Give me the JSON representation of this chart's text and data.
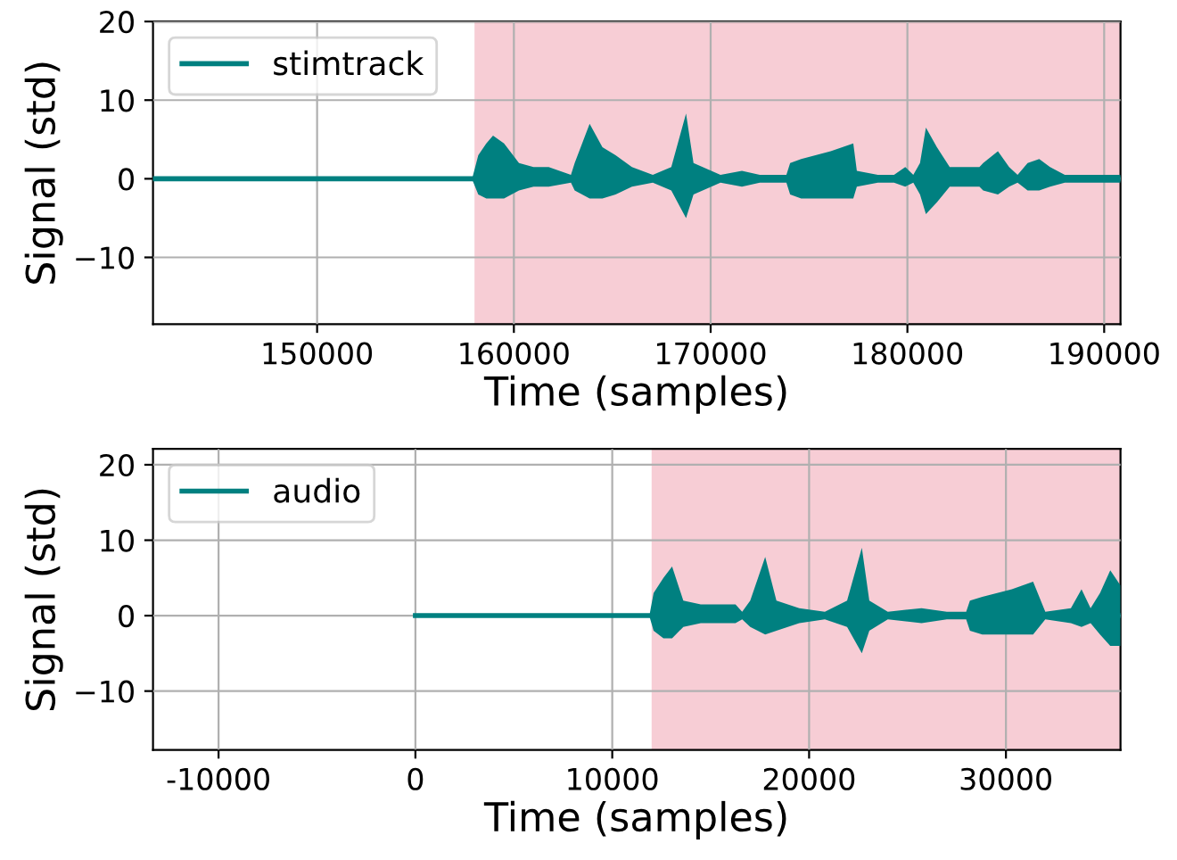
{
  "chart_data": [
    {
      "type": "line",
      "xlabel": "Time (samples)",
      "ylabel": "Signal (std)",
      "xlim": [
        141660,
        190830
      ],
      "ylim": [
        -18.5,
        20
      ],
      "xticks": [
        150000,
        160000,
        170000,
        180000,
        190000
      ],
      "yticks": [
        -10,
        0,
        10,
        20
      ],
      "grid": true,
      "legend": "top left",
      "bands": [
        {
          "axis": "x",
          "from": 158000,
          "to": 190830,
          "color": "#f7cdd5"
        }
      ],
      "series": [
        {
          "name": "stimtrack",
          "color": "#008080",
          "x": [
            141660,
            157900,
            158190,
            158600,
            158940,
            159500,
            160260,
            161000,
            161770,
            162900,
            163090,
            163850,
            164500,
            165170,
            166000,
            167060,
            168000,
            168750,
            169130,
            170500,
            171590,
            172500,
            173850,
            174040,
            174600,
            176100,
            177250,
            177430,
            178500,
            179320,
            179890,
            180300,
            180640,
            180940,
            181500,
            182150,
            183000,
            183660,
            183850,
            184600,
            185170,
            185600,
            186110,
            186700,
            187250,
            188000,
            190830
          ],
          "values": [
            0,
            0,
            0,
            0,
            0,
            0,
            0,
            0,
            0,
            0,
            0,
            0,
            0,
            0,
            0,
            0,
            0,
            0,
            0,
            0,
            0,
            0,
            0,
            0,
            0,
            0,
            0,
            0,
            0,
            0,
            0,
            0,
            0,
            0,
            0,
            0,
            0,
            0,
            0,
            0,
            0,
            0,
            0,
            0,
            0,
            0,
            0
          ],
          "upper": [
            null,
            0.2,
            3,
            4.5,
            5.5,
            4.5,
            2,
            1.5,
            1.5,
            0.5,
            2,
            7,
            4,
            3,
            1.5,
            0.5,
            1.5,
            8.3,
            2,
            0.5,
            1,
            0.5,
            0.5,
            2,
            2.5,
            3.5,
            4.5,
            1,
            0.5,
            0.5,
            1.5,
            0.5,
            2,
            6.5,
            4,
            1.5,
            1.5,
            1.5,
            2,
            3.5,
            1.5,
            0.5,
            2,
            2.5,
            1.5,
            0.5,
            0.5
          ],
          "lower": [
            null,
            -0.2,
            -2,
            -2.5,
            -2.5,
            -2.5,
            -1.5,
            -1,
            -1,
            -0.5,
            -1.5,
            -2.5,
            -2.5,
            -2,
            -1,
            -0.5,
            -1.5,
            -5,
            -2,
            -0.5,
            -1,
            -0.5,
            -0.5,
            -2,
            -2.5,
            -2.5,
            -2.5,
            -1,
            -0.5,
            -0.5,
            -1,
            -0.5,
            -2,
            -4.5,
            -3,
            -1,
            -1,
            -1,
            -1.5,
            -2,
            -1,
            -0.5,
            -1.5,
            -1.5,
            -1,
            -0.5,
            -0.5
          ]
        }
      ]
    },
    {
      "type": "line",
      "xlabel": "Time (samples)",
      "ylabel": "Signal (std)",
      "xlim": [
        -13330,
        35820
      ],
      "ylim": [
        -17.8,
        22.1
      ],
      "xticks": [
        -10000,
        0,
        10000,
        20000,
        30000
      ],
      "yticks": [
        -10,
        0,
        10,
        20
      ],
      "grid": true,
      "legend": "top left",
      "bands": [
        {
          "axis": "x",
          "from": 12000,
          "to": 35820,
          "color": "#f7cdd5"
        }
      ],
      "series": [
        {
          "name": "audio",
          "color": "#008080",
          "x": [
            0,
            11900,
            12100,
            12600,
            13040,
            13610,
            14500,
            16260,
            16600,
            17010,
            17770,
            18340,
            19500,
            20800,
            21930,
            22680,
            23060,
            24000,
            25710,
            27000,
            27980,
            28170,
            28800,
            30300,
            31380,
            32000,
            33300,
            33840,
            34300,
            34780,
            35300,
            35820
          ],
          "values": [
            0,
            0,
            0,
            0,
            0,
            0,
            0,
            0,
            0,
            0,
            0,
            0,
            0,
            0,
            0,
            0,
            0,
            0,
            0,
            0,
            0,
            0,
            0,
            0,
            0,
            0,
            0,
            0,
            0,
            0,
            0,
            0
          ],
          "upper": [
            null,
            0.2,
            3,
            5,
            6.5,
            2,
            1.5,
            1.5,
            0.5,
            2,
            7.8,
            2,
            1,
            0.5,
            2,
            9,
            2,
            0.5,
            1,
            0.5,
            0.5,
            2,
            2.5,
            3.5,
            4.5,
            0.5,
            1,
            3.5,
            1,
            3,
            6,
            4
          ],
          "lower": [
            null,
            -0.2,
            -2,
            -3,
            -3,
            -1.5,
            -1,
            -1,
            -0.5,
            -1.5,
            -2.5,
            -2,
            -1,
            -0.5,
            -1.5,
            -5,
            -2,
            -0.5,
            -1,
            -0.5,
            -0.5,
            -2,
            -2.5,
            -2.5,
            -2.5,
            -0.5,
            -1,
            -1.5,
            -1,
            -2.5,
            -4,
            -4
          ]
        }
      ]
    }
  ]
}
